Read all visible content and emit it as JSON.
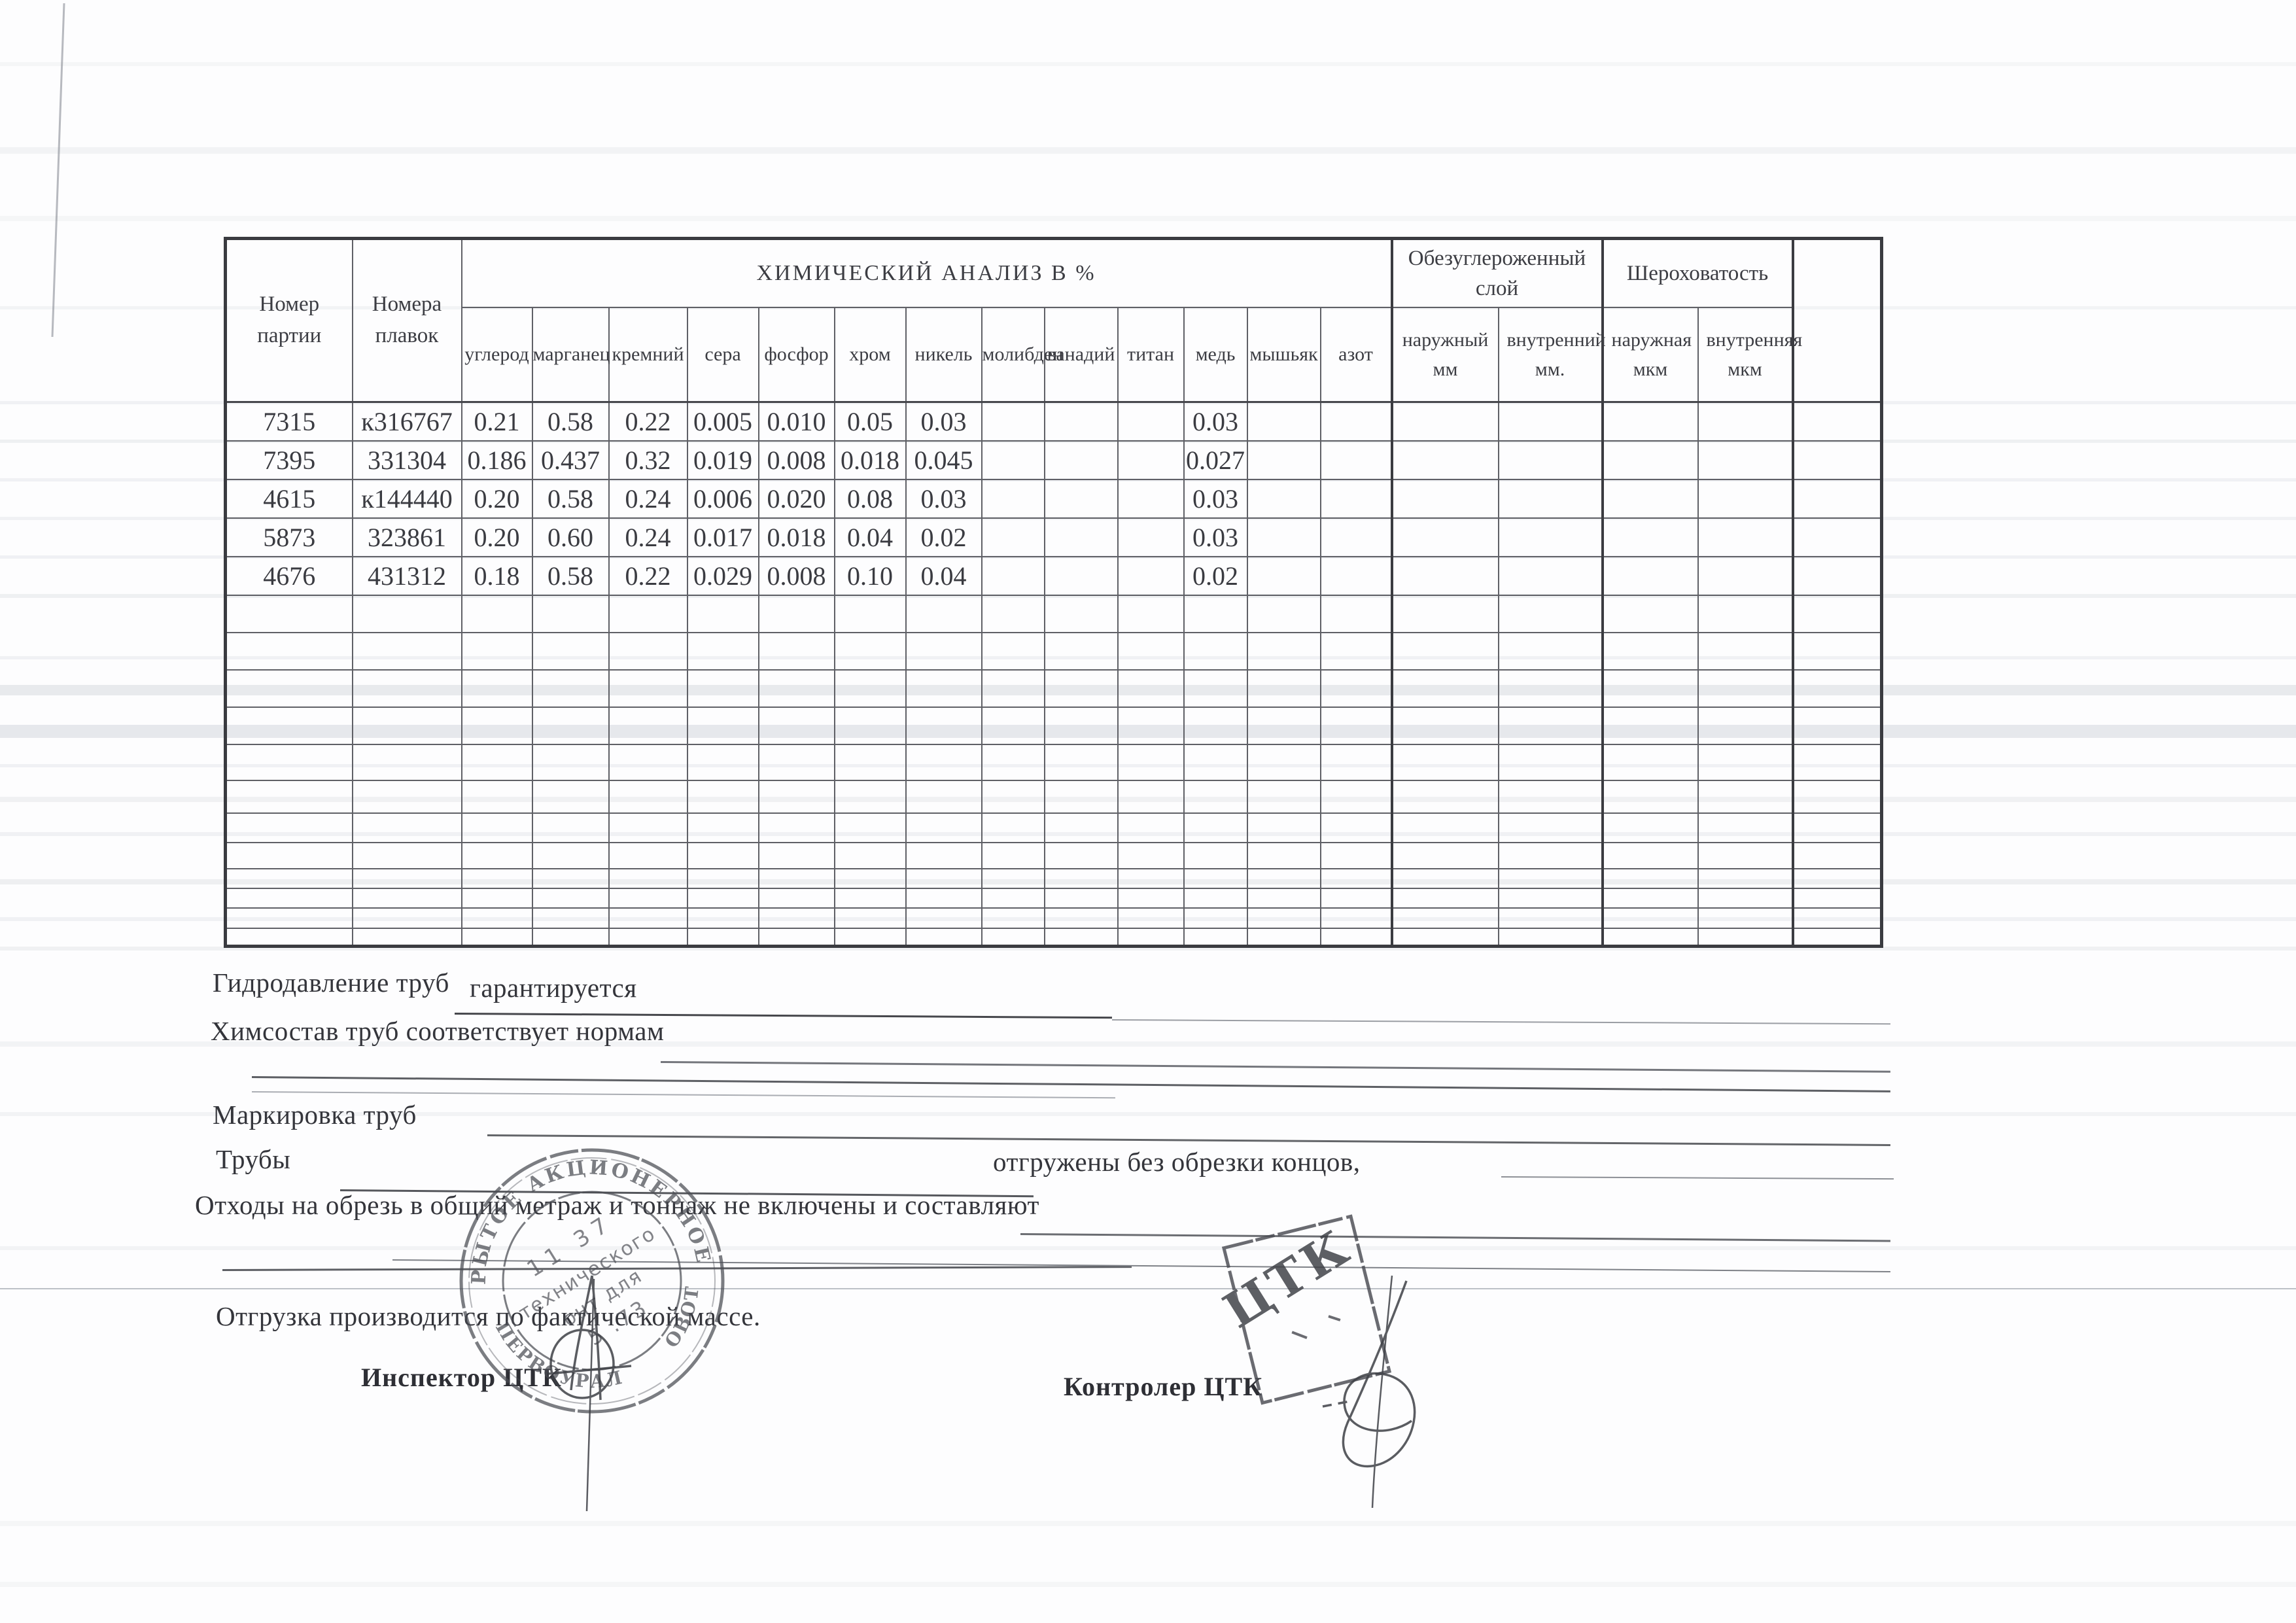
{
  "document": {
    "table": {
      "col1_header": "Номер партии",
      "col2_header": "Номера плавок",
      "analysis_title": "ХИМИЧЕСКИЙ АНАЛИЗ  В  %",
      "decarb_header": "Обезуглероженный слой",
      "roughness_header": "Шероховатость",
      "elements": [
        "углерод",
        "марганец",
        "кремний",
        "сера",
        "фосфор",
        "хром",
        "никель",
        "молибден",
        "ванадий",
        "титан",
        "медь",
        "мышьяк",
        "азот"
      ],
      "decarb_sub": [
        "наружный мм",
        "внутренний мм."
      ],
      "roughness_sub": [
        "наружная мкм",
        "внутренняя мкм"
      ],
      "rows": [
        {
          "cells": [
            "7315",
            "к316767",
            "0.21",
            "0.58",
            "0.22",
            "0.005",
            "0.010",
            "0.05",
            "0.03",
            "",
            "",
            "",
            "0.03",
            "",
            "",
            "",
            "",
            "",
            "",
            ""
          ]
        },
        {
          "cells": [
            "7395",
            "331304",
            "0.186",
            "0.437",
            "0.32",
            "0.019",
            "0.008",
            "0.018",
            "0.045",
            "",
            "",
            "",
            "0.027",
            "",
            "",
            "",
            "",
            "",
            "",
            ""
          ]
        },
        {
          "cells": [
            "4615",
            "к144440",
            "0.20",
            "0.58",
            "0.24",
            "0.006",
            "0.020",
            "0.08",
            "0.03",
            "",
            "",
            "",
            "0.03",
            "",
            "",
            "",
            "",
            "",
            "",
            ""
          ]
        },
        {
          "cells": [
            "5873",
            "323861",
            "0.20",
            "0.60",
            "0.24",
            "0.017",
            "0.018",
            "0.04",
            "0.02",
            "",
            "",
            "",
            "0.03",
            "",
            "",
            "",
            "",
            "",
            "",
            ""
          ]
        },
        {
          "cells": [
            "4676",
            "431312",
            "0.18",
            "0.58",
            "0.22",
            "0.029",
            "0.008",
            "0.10",
            "0.04",
            "",
            "",
            "",
            "0.02",
            "",
            "",
            "",
            "",
            "",
            "",
            ""
          ]
        }
      ],
      "empty_row_count": 12
    },
    "form": {
      "hydro_label": "Гидродавление труб",
      "hydro_value": "гарантируется",
      "chem_statement": "Химсостав труб соответствует нормам",
      "marking_label": "Маркировка труб",
      "pipes_label": "Трубы",
      "pipes_shipped": "отгружены без обрезки концов,",
      "waste_statement": "Отходы на обрезь в общий метраж и тоннаж не включены и составляют",
      "shipping_statement": "Отгрузка производится по фактической массе.",
      "inspector_label": "Инспектор  ЦТК",
      "controller_label": "Контролер ЦТК"
    },
    "stamps": {
      "round_arc_top": "ОТКРЫТОЕ АКЦИОНЕРНОЕ ОБЩ",
      "round_arc_bottom": "ПЕРВОУРАЛ",
      "round_arc_right": "ОВОТ  ПОЛ",
      "round_inner_line1": "11 37",
      "round_inner_line2": "технического",
      "round_inner_line3": "онт  для",
      "round_inner_line4": "5 .73",
      "ctk_label": "ЦТК"
    }
  }
}
